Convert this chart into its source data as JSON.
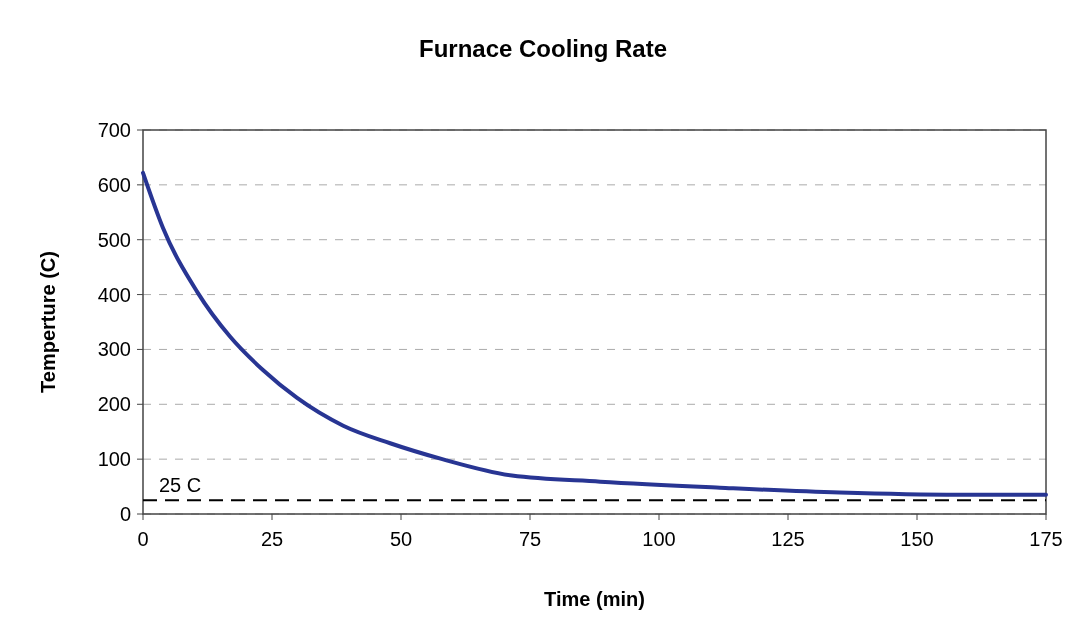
{
  "chart_data": {
    "type": "line",
    "title": "Furnace Cooling Rate",
    "xlabel": "Time (min)",
    "ylabel": "Temperture (C)",
    "x": [
      0,
      3.9,
      10.5,
      16.9,
      23.3,
      29.8,
      38.8,
      47.9,
      58,
      71.5,
      88.6,
      111.8,
      135,
      158,
      175
    ],
    "series": [
      {
        "color": "#283593",
        "values": [
          622,
          521,
          405,
          323,
          262,
          212,
          161,
          129,
          100,
          70,
          59,
          48,
          39,
          35,
          35
        ]
      }
    ],
    "xlim": [
      0,
      175
    ],
    "xticks": [
      0,
      25,
      50,
      75,
      100,
      125,
      150,
      175
    ],
    "ylim": [
      0,
      700
    ],
    "yticks": [
      0,
      100,
      200,
      300,
      400,
      500,
      600,
      700
    ],
    "grid": "y",
    "marker": "none",
    "line_style": "solid",
    "ref_lines": [
      {
        "axis": "y",
        "value": 25,
        "label": "25 C",
        "color": "#000000",
        "line_style": "dashed"
      }
    ]
  }
}
